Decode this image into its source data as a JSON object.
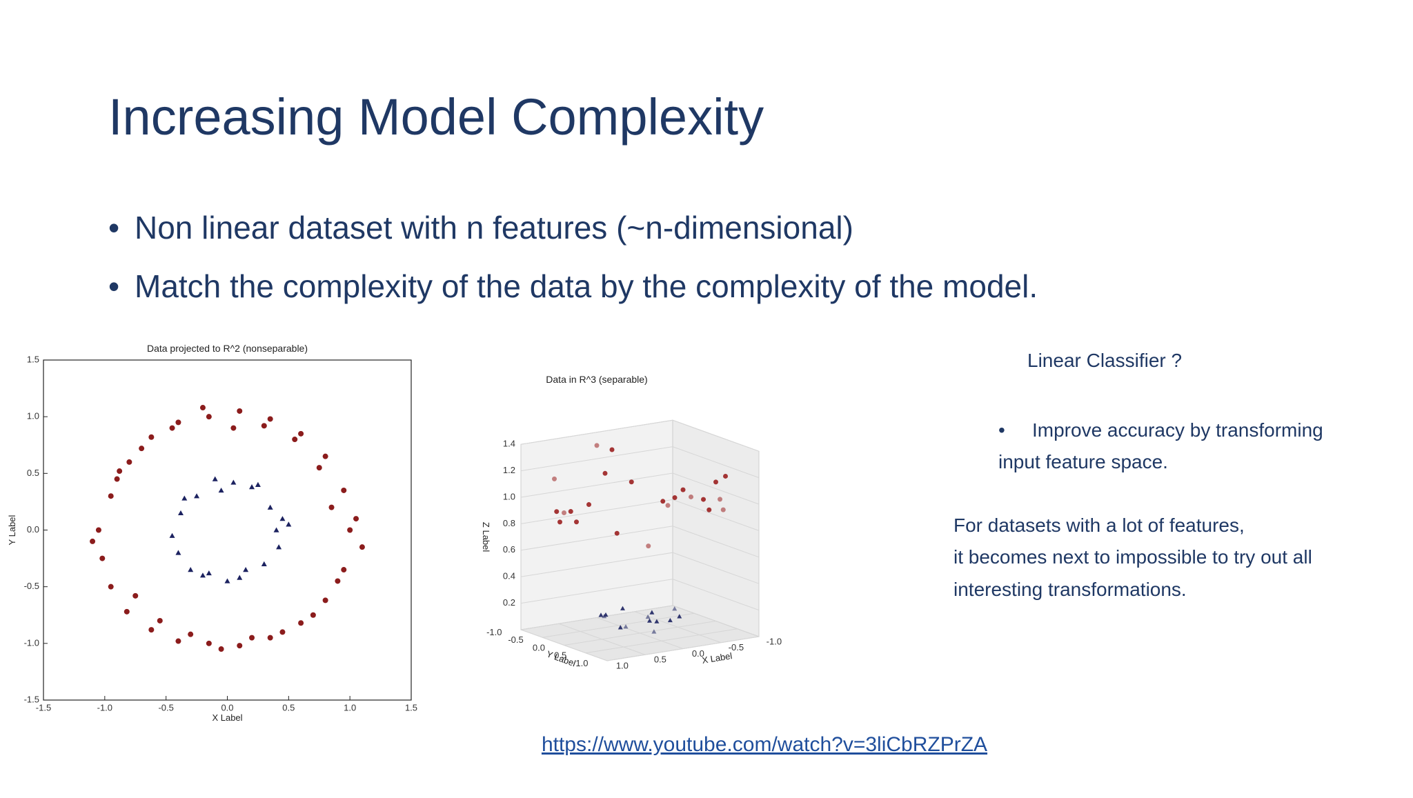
{
  "slide": {
    "title": "Increasing Model Complexity",
    "bullets": [
      "Non linear dataset with n features (~n-dimensional)",
      "Match the complexity of the data by the complexity of the model."
    ],
    "side_heading": "Linear Classifier ?",
    "side_bullet": [
      "Improve accuracy by transforming",
      "input feature space."
    ],
    "side_paragraph": [
      "For datasets with a lot of features,",
      "it becomes next to impossible to try out all",
      "interesting transformations."
    ],
    "link": "https://www.youtube.com/watch?v=3liCbRZPrZA"
  },
  "chart_data": [
    {
      "type": "scatter",
      "title": "Data projected to R^2 (nonseparable)",
      "x_label": "X Label",
      "y_label": "Y Label",
      "xlim": [
        -1.5,
        1.5
      ],
      "ylim": [
        -1.5,
        1.5
      ],
      "xticks": [
        -1.5,
        {
          "value": -1,
          "label": "-1.0"
        },
        -0.5,
        {
          "value": 0,
          "label": "0.0"
        },
        0.5,
        {
          "value": 1,
          "label": "1.0"
        },
        1.5
      ],
      "yticks": [
        -1.5,
        {
          "value": -1,
          "label": "-1.0"
        },
        -0.5,
        {
          "value": 0,
          "label": "0.0"
        },
        0.5,
        {
          "value": 1,
          "label": "1.0"
        },
        1.5
      ],
      "series": [
        {
          "color": "#8b1c1c",
          "marker": "circle",
          "x": [
            1.0,
            0.95,
            0.8,
            0.6,
            0.35,
            0.1,
            -0.15,
            -0.4,
            -0.62,
            -0.8,
            -0.95,
            -1.05,
            -1.02,
            -0.95,
            -0.82,
            -0.62,
            -0.4,
            -0.15,
            0.1,
            0.35,
            0.6,
            0.8,
            0.95,
            1.05,
            0.9,
            0.7,
            0.45,
            0.2,
            -0.05,
            -0.3,
            -0.55,
            -0.75,
            -0.9,
            -1.1,
            -0.88,
            -0.7,
            -0.45,
            -0.2,
            0.05,
            0.3,
            0.55,
            0.75,
            1.1,
            0.85
          ],
          "y": [
            0.0,
            0.35,
            0.65,
            0.85,
            0.98,
            1.05,
            1.0,
            0.95,
            0.82,
            0.6,
            0.3,
            0.0,
            -0.25,
            -0.5,
            -0.72,
            -0.88,
            -0.98,
            -1.0,
            -1.02,
            -0.95,
            -0.82,
            -0.62,
            -0.35,
            0.1,
            -0.45,
            -0.75,
            -0.9,
            -0.95,
            -1.05,
            -0.92,
            -0.8,
            -0.58,
            0.45,
            -0.1,
            0.52,
            0.72,
            0.9,
            1.08,
            0.9,
            0.92,
            0.8,
            0.55,
            -0.15,
            0.2
          ]
        },
        {
          "color": "#1c2260",
          "marker": "triangle",
          "x": [
            0.4,
            0.35,
            0.2,
            0.05,
            -0.1,
            -0.25,
            -0.38,
            -0.45,
            -0.4,
            -0.3,
            -0.15,
            0.0,
            0.15,
            0.3,
            0.42,
            0.5,
            0.25,
            -0.2,
            0.1,
            -0.35,
            0.45,
            -0.05
          ],
          "y": [
            0.0,
            0.2,
            0.38,
            0.42,
            0.45,
            0.3,
            0.15,
            -0.05,
            -0.2,
            -0.35,
            -0.38,
            -0.45,
            -0.35,
            -0.3,
            -0.15,
            0.05,
            0.4,
            -0.4,
            -0.42,
            0.28,
            0.1,
            0.35
          ]
        }
      ]
    },
    {
      "type": "scatter3d",
      "title": "Data in R^3 (separable)",
      "x_label": "X Label",
      "y_label": "Y Label",
      "z_label": "Z Label",
      "xlim": [
        -1,
        1
      ],
      "ylim": [
        -1,
        1
      ],
      "zlim": [
        0,
        1.4
      ],
      "xticks": [
        {
          "value": 1,
          "label": "1.0"
        },
        0.5,
        {
          "value": 0,
          "label": "0.0"
        },
        -0.5,
        {
          "value": -1,
          "label": "-1.0"
        }
      ],
      "yticks": [
        {
          "value": -1,
          "label": "-1.0"
        },
        -0.5,
        {
          "value": 0,
          "label": "0.0"
        },
        0.5,
        {
          "value": 1,
          "label": "1.0"
        }
      ],
      "zticks": [
        0.2,
        0.4,
        0.6,
        0.8,
        {
          "value": 1,
          "label": "1.0"
        },
        1.2,
        1.4
      ],
      "series": [
        {
          "color": "#9b2020",
          "marker": "circle",
          "x": [
            1,
            0.7,
            0,
            -0.7,
            -1,
            -0.7,
            0,
            0.7,
            0.9,
            0.4,
            -0.4,
            -0.9,
            -0.9,
            -0.4,
            0.4,
            0.9,
            0.95,
            -0.95,
            0.2,
            -0.2,
            0.6,
            -0.6,
            0.8,
            -0.8
          ],
          "y": [
            0,
            0.7,
            1,
            0.7,
            0,
            -0.7,
            -1,
            -0.7,
            0.4,
            0.9,
            0.9,
            0.4,
            -0.4,
            -0.9,
            -0.9,
            -0.4,
            0.2,
            -0.2,
            1,
            -1,
            -0.8,
            0.8,
            0.6,
            -0.6
          ],
          "z": [
            1.0,
            0.9,
            1.2,
            0.95,
            1.05,
            0.85,
            1.3,
            0.9,
            1.1,
            0.8,
            1.0,
            1.15,
            0.9,
            1.0,
            0.85,
            1.2,
            0.95,
            0.9,
            1.1,
            1.25,
            0.8,
            1.05,
            1.35,
            0.88
          ]
        },
        {
          "color": "#1c2260",
          "marker": "triangle",
          "x": [
            0.3,
            0.1,
            -0.2,
            -0.4,
            -0.3,
            0.0,
            0.3,
            0.45,
            0.2,
            -0.1,
            -0.35,
            0.4,
            0.15,
            -0.25
          ],
          "y": [
            0.2,
            0.4,
            0.35,
            0.1,
            -0.25,
            -0.4,
            -0.3,
            0.0,
            -0.1,
            0.15,
            0.3,
            -0.2,
            0.45,
            -0.05
          ],
          "z": [
            0.1,
            0.15,
            0.12,
            0.16,
            0.1,
            0.14,
            0.12,
            0.18,
            0.05,
            0.02,
            0.13,
            0.15,
            0.19,
            0.06
          ]
        }
      ]
    }
  ]
}
